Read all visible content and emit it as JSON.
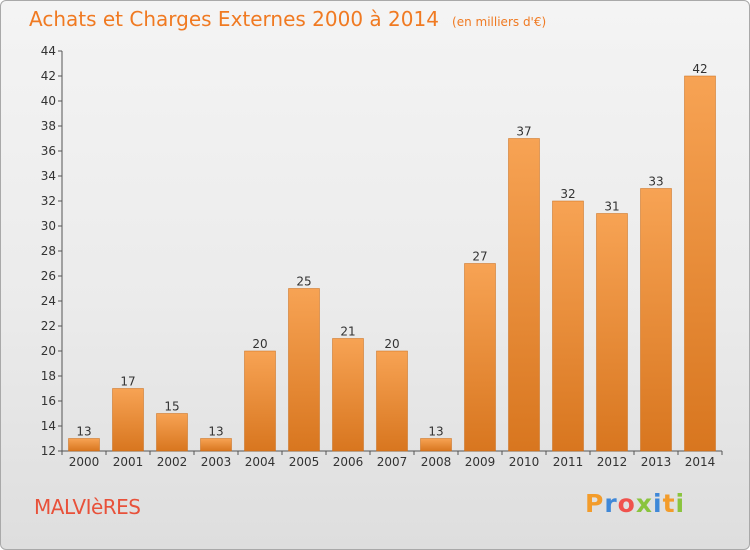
{
  "header": {
    "title": "Achats et Charges Externes 2000 à 2014",
    "unit": "(en milliers d'€)"
  },
  "footer": {
    "commune": "MALVIèRES",
    "logo_letters": [
      "P",
      "r",
      "o",
      "x",
      "i",
      "t",
      "i"
    ]
  },
  "colors": {
    "bar_top": "#f7a354",
    "bar_bottom": "#d8761f",
    "title": "#f07a22",
    "commune": "#e8513a",
    "logo": [
      "#f39c2b",
      "#3f88d8",
      "#f0524d",
      "#8ac43e",
      "#3f88d8",
      "#f39c2b",
      "#8ac43e"
    ]
  },
  "chart_data": {
    "type": "bar",
    "title": "Achats et Charges Externes 2000 à 2014",
    "subtitle": "(en milliers d'€)",
    "categories": [
      "2000",
      "2001",
      "2002",
      "2003",
      "2004",
      "2005",
      "2006",
      "2007",
      "2008",
      "2009",
      "2010",
      "2011",
      "2012",
      "2013",
      "2014"
    ],
    "values": [
      13,
      17,
      15,
      13,
      20,
      25,
      21,
      20,
      13,
      27,
      37,
      32,
      31,
      33,
      42
    ],
    "ylim": [
      12,
      44
    ],
    "yticks": [
      12,
      14,
      16,
      18,
      20,
      22,
      24,
      26,
      28,
      30,
      32,
      34,
      36,
      38,
      40,
      42,
      44
    ],
    "grid": false,
    "data_labels": true
  }
}
